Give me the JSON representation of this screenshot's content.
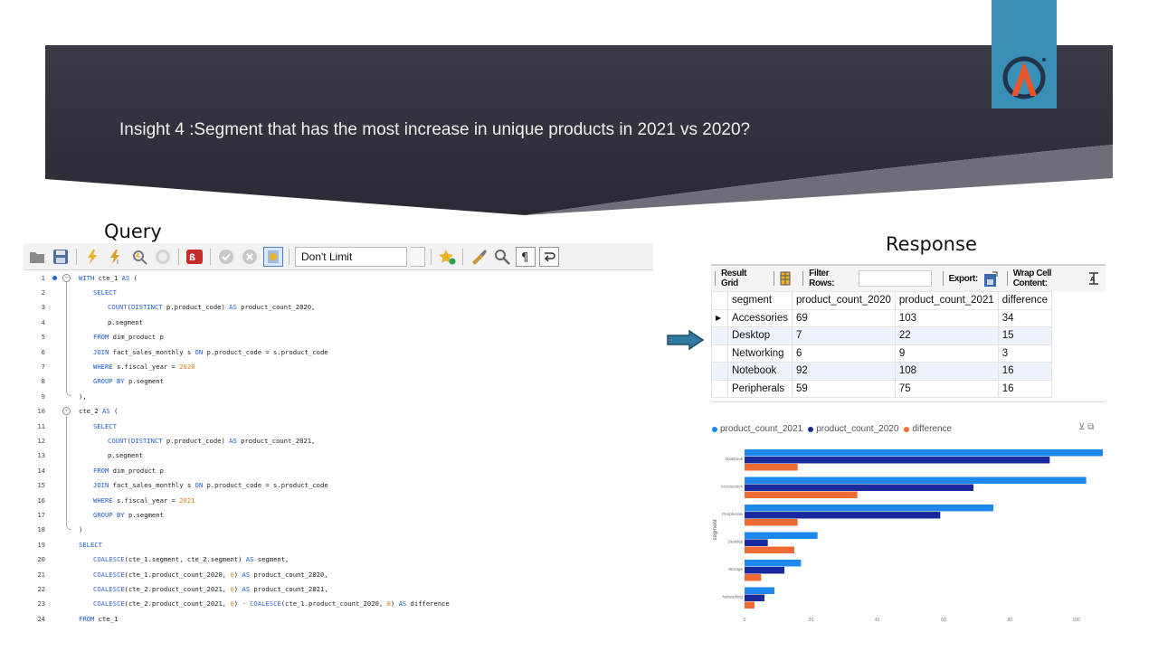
{
  "slide": {
    "title": "Insight 4 :Segment that has the most increase in unique products in 2021 vs 2020?",
    "query_label": "Query",
    "response_label": "Response"
  },
  "toolbar": {
    "icons": [
      "folder-icon",
      "save-icon",
      "lightning-icon",
      "lightning-cursor-icon",
      "explain-icon",
      "stop-icon",
      "toggle-error-icon",
      "commit-icon",
      "rollback-icon",
      "autocommit-icon"
    ],
    "limit_value": "Don't Limit",
    "right_icons": [
      "bookmark-star-icon",
      "beautify-icon",
      "find-icon",
      "invisible-chars-icon",
      "wrap-icon"
    ]
  },
  "code": {
    "lines": [
      {
        "n": "1",
        "indent": 0,
        "html": "<span class='kw'>WITH</span> cte_1 <span class='kw'>AS</span> ("
      },
      {
        "n": "2",
        "indent": 1,
        "html": "<span class='kw'>SELECT</span>"
      },
      {
        "n": "3",
        "indent": 2,
        "html": "<span class='fnc'>COUNT</span>(<span class='kw'>DISTINCT</span> p.product_code) <span class='kw'>AS</span> product_count_2020,"
      },
      {
        "n": "4",
        "indent": 2,
        "html": "p.segment"
      },
      {
        "n": "5",
        "indent": 1,
        "html": "<span class='kw'>FROM</span> dim_product p"
      },
      {
        "n": "6",
        "indent": 1,
        "html": "<span class='kw'>JOIN</span> fact_sales_monthly s <span class='kw'>ON</span> p.product_code = s.product_code"
      },
      {
        "n": "7",
        "indent": 1,
        "html": "<span class='kw'>WHERE</span> s.fiscal_year = <span class='num'>2020</span>"
      },
      {
        "n": "8",
        "indent": 1,
        "html": "<span class='kw'>GROUP BY</span> p.segment"
      },
      {
        "n": "9",
        "indent": 0,
        "html": "),"
      },
      {
        "n": "10",
        "indent": 0,
        "html": "cte_2 <span class='kw'>AS</span> ("
      },
      {
        "n": "11",
        "indent": 1,
        "html": "<span class='kw'>SELECT</span>"
      },
      {
        "n": "12",
        "indent": 2,
        "html": "<span class='fnc'>COUNT</span>(<span class='kw'>DISTINCT</span> p.product_code) <span class='kw'>AS</span> product_count_2021,"
      },
      {
        "n": "13",
        "indent": 2,
        "html": "p.segment"
      },
      {
        "n": "14",
        "indent": 1,
        "html": "<span class='kw'>FROM</span> dim_product p"
      },
      {
        "n": "15",
        "indent": 1,
        "html": "<span class='kw'>JOIN</span> fact_sales_monthly s <span class='kw'>ON</span> p.product_code = s.product_code"
      },
      {
        "n": "16",
        "indent": 1,
        "html": "<span class='kw'>WHERE</span> s.fiscal_year = <span class='num'>2021</span>"
      },
      {
        "n": "17",
        "indent": 1,
        "html": "<span class='kw'>GROUP BY</span> p.segment"
      },
      {
        "n": "18",
        "indent": 0,
        "html": ")"
      },
      {
        "n": "19",
        "indent": 0,
        "html": "<span class='kw'>SELECT</span>"
      },
      {
        "n": "20",
        "indent": 1,
        "html": "<span class='fnc'>COALESCE</span>(cte_1.segment, cte_2.segment) <span class='kw'>AS</span> segment,"
      },
      {
        "n": "21",
        "indent": 1,
        "html": "<span class='fnc'>COALESCE</span>(cte_1.product_count_2020, <span class='num'>0</span>) <span class='kw'>AS</span> product_count_2020,"
      },
      {
        "n": "22",
        "indent": 1,
        "html": "<span class='fnc'>COALESCE</span>(cte_2.product_count_2021, <span class='num'>0</span>) <span class='kw'>AS</span> product_count_2021,"
      },
      {
        "n": "23",
        "indent": 1,
        "html": "<span class='fnc'>COALESCE</span>(cte_2.product_count_2021, <span class='num'>0</span>) - <span class='fnc'>COALESCE</span>(cte_1.product_count_2020, <span class='num'>0</span>) <span class='kw'>AS</span> difference"
      },
      {
        "n": "24",
        "indent": 0,
        "html": "<span class='kw'>FROM</span> cte_1"
      }
    ]
  },
  "result_grid": {
    "result_grid_label": "Result Grid",
    "filter_label": "Filter Rows:",
    "export_label": "Export:",
    "wrap_label": "Wrap Cell Content:",
    "columns": [
      "segment",
      "product_count_2020",
      "product_count_2021",
      "difference"
    ],
    "rows": [
      [
        "Accessories",
        "69",
        "103",
        "34"
      ],
      [
        "Desktop",
        "7",
        "22",
        "15"
      ],
      [
        "Networking",
        "6",
        "9",
        "3"
      ],
      [
        "Notebook",
        "92",
        "108",
        "16"
      ],
      [
        "Peripherals",
        "59",
        "75",
        "16"
      ]
    ]
  },
  "chart_data": {
    "type": "bar",
    "orientation": "horizontal",
    "categories": [
      "Notebook",
      "Accessories",
      "Peripherals",
      "Desktop",
      "Storage",
      "Networking"
    ],
    "series": [
      {
        "name": "product_count_2021",
        "color": "#1e88f0",
        "values": [
          108,
          103,
          75,
          22,
          17,
          9
        ]
      },
      {
        "name": "product_count_2020",
        "color": "#1a2a9e",
        "values": [
          92,
          69,
          59,
          7,
          12,
          6
        ]
      },
      {
        "name": "difference",
        "color": "#ef6b33",
        "values": [
          16,
          34,
          16,
          15,
          5,
          3
        ]
      }
    ],
    "xticks": [
      0,
      20,
      40,
      60,
      80,
      100
    ],
    "xlim": [
      0,
      108
    ],
    "ylabel": "segment",
    "legend_position": "top-left"
  }
}
